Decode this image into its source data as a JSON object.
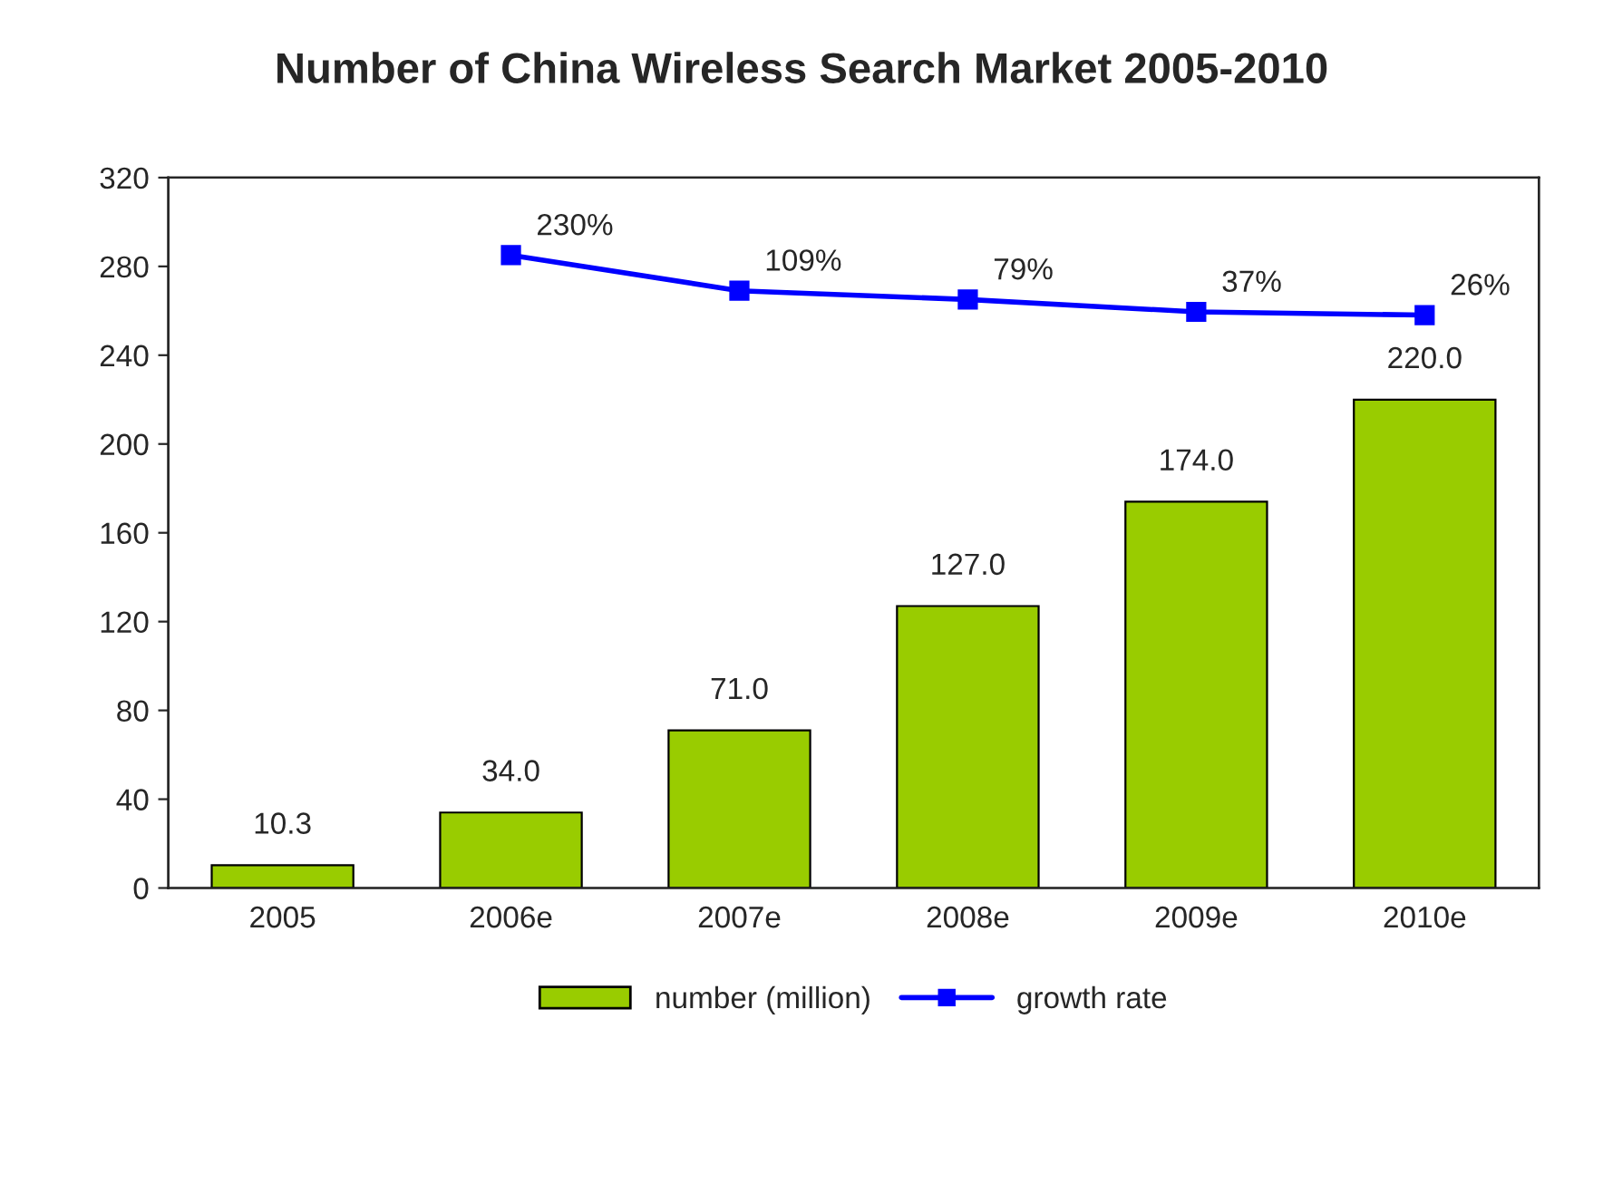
{
  "chart_data": {
    "type": "bar",
    "title": "Number of China Wireless Search Market 2005-2010",
    "categories": [
      "2005",
      "2006e",
      "2007e",
      "2008e",
      "2009e",
      "2010e"
    ],
    "series": [
      {
        "name": "number (million)",
        "color": "#99cc00",
        "values": [
          10.3,
          34.0,
          71.0,
          127.0,
          174.0,
          220.0
        ],
        "value_labels": [
          "10.3",
          "34.0",
          "71.0",
          "127.0",
          "174.0",
          "220.0"
        ]
      },
      {
        "name": "growth rate",
        "type": "line",
        "axis": "y2",
        "color": "#0000ff",
        "marker": "square",
        "line_style": "solid",
        "values": [
          null,
          230,
          109,
          79,
          37,
          26
        ],
        "value_labels": [
          null,
          "230%",
          "109%",
          "79%",
          "37%",
          "26%"
        ]
      }
    ],
    "ylim": [
      0,
      320
    ],
    "yticks": [
      0,
      40,
      80,
      120,
      160,
      200,
      240,
      280,
      320
    ],
    "y2lim": [
      -1924,
      494
    ],
    "grid": false,
    "legend": "bottom"
  }
}
